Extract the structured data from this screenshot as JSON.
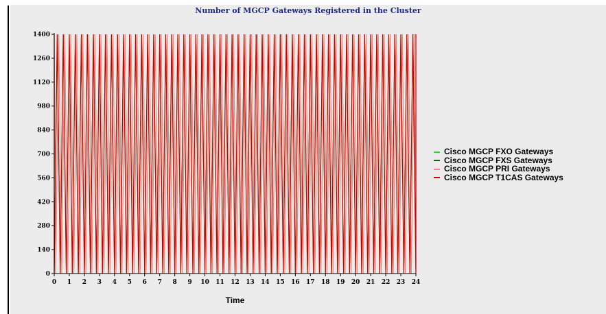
{
  "chart_data": {
    "type": "line",
    "title": "Number of MGCP Gateways Registered in the Cluster",
    "xlabel": "Time",
    "ylabel": "",
    "xlim": [
      0,
      24
    ],
    "ylim": [
      0,
      1400
    ],
    "x_ticks": [
      "0",
      "1",
      "2",
      "3",
      "4",
      "5",
      "6",
      "7",
      "8",
      "9",
      "10",
      "11",
      "12",
      "13",
      "14",
      "15",
      "16",
      "17",
      "18",
      "19",
      "20",
      "21",
      "22",
      "23",
      "24"
    ],
    "y_ticks": [
      "0",
      "140",
      "280",
      "420",
      "560",
      "700",
      "840",
      "980",
      "1120",
      "1260",
      "1400"
    ],
    "legend_position": "right",
    "grid": false,
    "series": [
      {
        "name": "Cisco MGCP FXO Gateways",
        "color": "#33cc33",
        "pattern": "oscillation",
        "cycles_per_unit": 2.5,
        "min": 0,
        "max": 1400,
        "phase": 0.5
      },
      {
        "name": "Cisco MGCP FXS Gateways",
        "color": "#006600",
        "pattern": "oscillation",
        "cycles_per_unit": 2.5,
        "min": 0,
        "max": 1400,
        "phase": 0.0
      },
      {
        "name": "Cisco MGCP PRI Gateways",
        "color": "#ff8080",
        "pattern": "oscillation",
        "cycles_per_unit": 2.5,
        "min": 0,
        "max": 1400,
        "phase": 0.5
      },
      {
        "name": "Cisco MGCP T1CAS Gateways",
        "color": "#cc0000",
        "pattern": "oscillation",
        "cycles_per_unit": 2.5,
        "min": 0,
        "max": 1400,
        "phase": 0.0
      }
    ]
  }
}
